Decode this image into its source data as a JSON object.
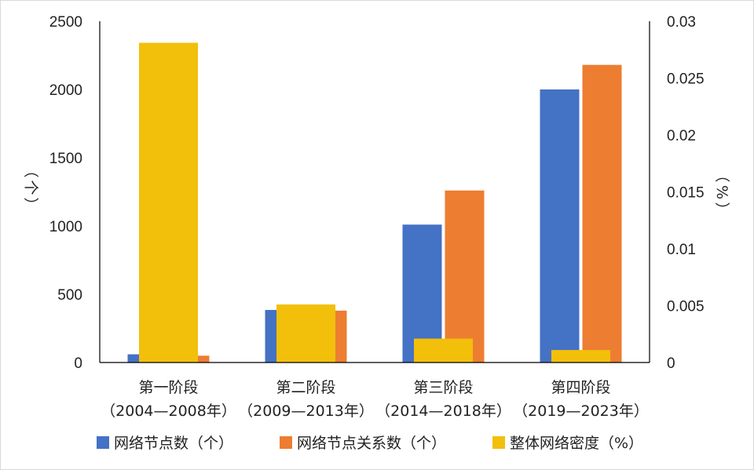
{
  "chart_data": {
    "type": "bar",
    "categories": [
      "第一阶段\n（2004—2008年）",
      "第二阶段\n（2009—2013年）",
      "第三阶段\n（2014—2018年）",
      "第四阶段\n（2019—2023年）"
    ],
    "series": [
      {
        "name": "网络节点数（个）",
        "axis": "left",
        "color": "#4472C4",
        "values": [
          60,
          385,
          1010,
          2000
        ]
      },
      {
        "name": "网络节点关系数（个）",
        "axis": "left",
        "color": "#ED7D31",
        "values": [
          50,
          380,
          1260,
          2180
        ]
      },
      {
        "name": "整体网络密度（%）",
        "axis": "right",
        "color": "#F2BF0B",
        "values": [
          0.0281,
          0.0051,
          0.0021,
          0.0011
        ]
      }
    ],
    "y_left": {
      "label": "（个）",
      "ylim": [
        0,
        2500
      ],
      "ticks": [
        "0",
        "500",
        "1000",
        "1500",
        "2000",
        "2500"
      ]
    },
    "y_right": {
      "label": "（%）",
      "ylim": [
        0,
        0.03
      ],
      "ticks": [
        "0",
        "0.005",
        "0.01",
        "0.015",
        "0.02",
        "0.025",
        "0.03"
      ]
    },
    "grid": false,
    "legend": "bottom"
  }
}
